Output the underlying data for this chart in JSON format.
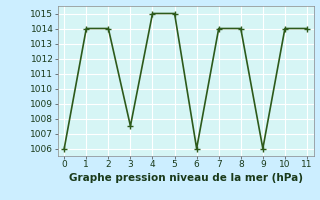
{
  "x": [
    0,
    1,
    2,
    3,
    4,
    5,
    6,
    7,
    8,
    9,
    10,
    11
  ],
  "y": [
    1006,
    1014,
    1014,
    1007.5,
    1015,
    1015,
    1006,
    1014,
    1014,
    1006,
    1014,
    1014
  ],
  "line_color": "#2d5a1b",
  "marker": "+",
  "marker_size": 4,
  "marker_color": "#2d5a1b",
  "bg_color": "#cceeff",
  "plot_bg_color": "#d6f5f5",
  "grid_color": "#ffffff",
  "xlabel": "Graphe pression niveau de la mer (hPa)",
  "xlabel_fontsize": 7.5,
  "ylim": [
    1005.5,
    1015.5
  ],
  "xlim": [
    -0.3,
    11.3
  ],
  "yticks": [
    1006,
    1007,
    1008,
    1009,
    1010,
    1011,
    1012,
    1013,
    1014,
    1015
  ],
  "xticks": [
    0,
    1,
    2,
    3,
    4,
    5,
    6,
    7,
    8,
    9,
    10,
    11
  ],
  "tick_fontsize": 6.5,
  "linewidth": 1.2
}
